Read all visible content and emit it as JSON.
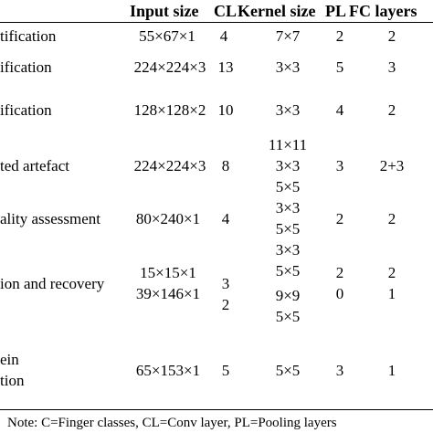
{
  "headers": {
    "input_size": "Input size",
    "cl": "CL",
    "kernel_size": "Kernel size",
    "pl": "PL",
    "fc_layers": "FC layers"
  },
  "rows": [
    {
      "task": "tification",
      "input_size": [
        "55×67×1"
      ],
      "cl": [
        "4"
      ],
      "kernel_size": [
        "7×7"
      ],
      "pl": [
        "2"
      ],
      "fc": [
        "2"
      ]
    },
    {
      "task": "ification",
      "input_size": [
        "224×224×3"
      ],
      "cl": [
        "13"
      ],
      "kernel_size": [
        "3×3"
      ],
      "pl": [
        "5"
      ],
      "fc": [
        "3"
      ]
    },
    {
      "task": "ification",
      "input_size": [
        "128×128×2"
      ],
      "cl": [
        "10"
      ],
      "kernel_size": [
        "3×3"
      ],
      "pl": [
        "4"
      ],
      "fc": [
        "2"
      ]
    },
    {
      "task": "ted artefact",
      "input_size": [
        "224×224×3"
      ],
      "cl": [
        "8"
      ],
      "kernel_size": [
        "11×11",
        "3×3",
        "5×5"
      ],
      "pl": [
        "3"
      ],
      "fc": [
        "2+3"
      ]
    },
    {
      "task": "ality assessment",
      "input_size": [
        "80×240×1"
      ],
      "cl": [
        "4"
      ],
      "kernel_size": [
        "3×3",
        "5×5"
      ],
      "pl": [
        "2"
      ],
      "fc": [
        "2"
      ]
    },
    {
      "task": "ion and recovery",
      "input_size": [
        "15×15×1",
        "39×146×1"
      ],
      "cl": [
        "3",
        "2"
      ],
      "kernel_size": [
        "3×3",
        "5×5",
        "9×9",
        "5×5"
      ],
      "pl": [
        "2",
        "0"
      ],
      "fc": [
        "2",
        "1"
      ]
    },
    {
      "task_lines": [
        "ein",
        "tion"
      ],
      "input_size": [
        "65×153×1"
      ],
      "cl": [
        "5"
      ],
      "kernel_size": [
        "5×5"
      ],
      "pl": [
        "3"
      ],
      "fc": [
        "1"
      ]
    }
  ],
  "note": "Note: C=Finger classes, CL=Conv layer, PL=Pooling layers"
}
